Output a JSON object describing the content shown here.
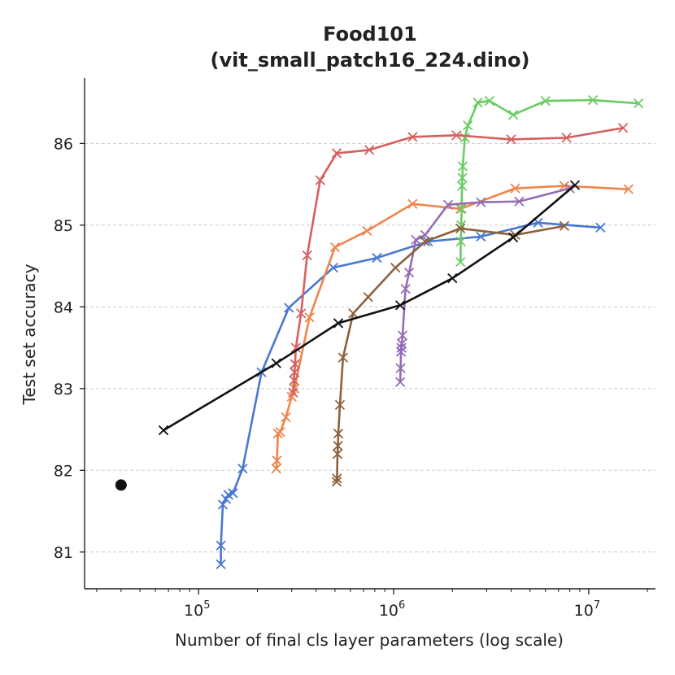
{
  "chart_data": {
    "type": "line",
    "title": "Food101",
    "subtitle": "(vit_small_patch16_224.dino)",
    "xlabel": "Number of final cls layer parameters (log scale)",
    "ylabel": "Test set accuracy",
    "xscale": "log",
    "xlim": [
      26000,
      22000000
    ],
    "ylim": [
      80.55,
      86.8
    ],
    "x_ticks": [
      {
        "value": 100000,
        "base": "10",
        "exp": "5"
      },
      {
        "value": 1000000,
        "base": "10",
        "exp": "6"
      },
      {
        "value": 10000000,
        "base": "10",
        "exp": "7"
      }
    ],
    "y_ticks": [
      81,
      82,
      83,
      84,
      85,
      86
    ],
    "grid": "horizontal-dashed",
    "series": [
      {
        "color": "#4878d0",
        "marker": "x",
        "points": [
          [
            130000,
            80.85
          ],
          [
            130000,
            81.08
          ],
          [
            133000,
            81.58
          ],
          [
            138000,
            81.65
          ],
          [
            142000,
            81.7
          ],
          [
            150000,
            81.72
          ],
          [
            168000,
            82.02
          ],
          [
            210000,
            83.2
          ],
          [
            290000,
            83.99
          ],
          [
            490000,
            84.48
          ],
          [
            820000,
            84.6
          ],
          [
            1500000,
            84.8
          ],
          [
            2800000,
            84.86
          ],
          [
            5500000,
            85.03
          ],
          [
            11500000,
            84.97
          ]
        ]
      },
      {
        "color": "#ee854a",
        "marker": "x",
        "points": [
          [
            250000,
            82.02
          ],
          [
            252000,
            82.12
          ],
          [
            255000,
            82.45
          ],
          [
            262000,
            82.47
          ],
          [
            280000,
            82.65
          ],
          [
            300000,
            82.9
          ],
          [
            310000,
            83.0
          ],
          [
            370000,
            83.87
          ],
          [
            500000,
            84.73
          ],
          [
            730000,
            84.93
          ],
          [
            1250000,
            85.26
          ],
          [
            2200000,
            85.2
          ],
          [
            4200000,
            85.45
          ],
          [
            7500000,
            85.48
          ],
          [
            16000000,
            85.44
          ]
        ]
      },
      {
        "color": "#6acc64",
        "marker": "x",
        "points": [
          [
            2200000,
            84.55
          ],
          [
            2210000,
            84.8
          ],
          [
            2220000,
            85.0
          ],
          [
            2230000,
            85.2
          ],
          [
            2240000,
            85.48
          ],
          [
            2250000,
            85.58
          ],
          [
            2260000,
            85.72
          ],
          [
            2320000,
            86.07
          ],
          [
            2400000,
            86.22
          ],
          [
            2700000,
            86.5
          ],
          [
            3100000,
            86.52
          ],
          [
            4100000,
            86.35
          ],
          [
            6000000,
            86.52
          ],
          [
            10500000,
            86.53
          ],
          [
            18000000,
            86.49
          ]
        ]
      },
      {
        "color": "#d65f5f",
        "marker": "x",
        "points": [
          [
            305000,
            82.95
          ],
          [
            308000,
            83.1
          ],
          [
            310000,
            83.2
          ],
          [
            312000,
            83.3
          ],
          [
            315000,
            83.5
          ],
          [
            335000,
            83.92
          ],
          [
            360000,
            84.63
          ],
          [
            420000,
            85.55
          ],
          [
            510000,
            85.88
          ],
          [
            750000,
            85.92
          ],
          [
            1250000,
            86.08
          ],
          [
            2100000,
            86.1
          ],
          [
            4000000,
            86.05
          ],
          [
            7700000,
            86.07
          ],
          [
            15000000,
            86.19
          ]
        ]
      },
      {
        "color": "#956cb4",
        "marker": "x",
        "points": [
          [
            1080000,
            83.08
          ],
          [
            1085000,
            83.25
          ],
          [
            1090000,
            83.45
          ],
          [
            1095000,
            83.5
          ],
          [
            1100000,
            83.55
          ],
          [
            1110000,
            83.65
          ],
          [
            1150000,
            84.22
          ],
          [
            1200000,
            84.42
          ],
          [
            1300000,
            84.82
          ],
          [
            1450000,
            84.88
          ],
          [
            1900000,
            85.25
          ],
          [
            2800000,
            85.28
          ],
          [
            4400000,
            85.29
          ],
          [
            8000000,
            85.45
          ]
        ]
      },
      {
        "color": "#8c613c",
        "marker": "x",
        "points": [
          [
            510000,
            81.86
          ],
          [
            512000,
            81.9
          ],
          [
            515000,
            82.2
          ],
          [
            518000,
            82.3
          ],
          [
            520000,
            82.45
          ],
          [
            530000,
            82.8
          ],
          [
            550000,
            83.38
          ],
          [
            620000,
            83.92
          ],
          [
            740000,
            84.12
          ],
          [
            1020000,
            84.48
          ],
          [
            1450000,
            84.8
          ],
          [
            2200000,
            84.96
          ],
          [
            4200000,
            84.88
          ],
          [
            7500000,
            84.99
          ]
        ]
      },
      {
        "color": "#111111",
        "marker": "x",
        "points": [
          [
            66000,
            82.49
          ],
          [
            250000,
            83.31
          ],
          [
            520000,
            83.8
          ],
          [
            1080000,
            84.02
          ],
          [
            2000000,
            84.35
          ],
          [
            4100000,
            84.85
          ],
          [
            8500000,
            85.49
          ]
        ]
      }
    ],
    "baseline_point": {
      "x": 40000,
      "y": 81.82,
      "color": "#111111",
      "marker": "o"
    }
  }
}
